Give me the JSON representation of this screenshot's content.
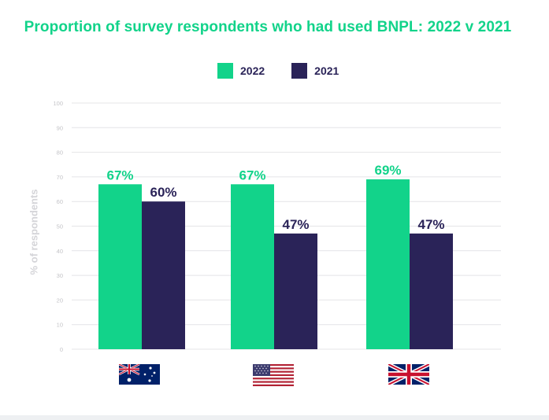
{
  "chart_data": {
    "type": "bar",
    "title": "Proportion of survey respondents who had used BNPL: 2022 v 2021",
    "ylabel": "% of respondents",
    "xlabel": "",
    "ylim": [
      0,
      100
    ],
    "yticks": [
      "0",
      "10",
      "20",
      "30",
      "40",
      "50",
      "60",
      "70",
      "80",
      "90",
      "100"
    ],
    "categories": [
      "Australia",
      "United States",
      "United Kingdom"
    ],
    "series": [
      {
        "name": "2022",
        "color": "#12d38a",
        "values": [
          67,
          67,
          69
        ],
        "labels": [
          "67%",
          "67%",
          "69%"
        ]
      },
      {
        "name": "2021",
        "color": "#2a2358",
        "values": [
          60,
          47,
          47
        ],
        "labels": [
          "60%",
          "47%",
          "47%"
        ]
      }
    ],
    "legend_position": "top-center",
    "grid": true
  },
  "flags": [
    "australia-flag-icon",
    "usa-flag-icon",
    "uk-flag-icon"
  ],
  "colors": {
    "title": "#12d38a",
    "grid": "#e4e4e7",
    "tick": "#c4c4c8"
  }
}
